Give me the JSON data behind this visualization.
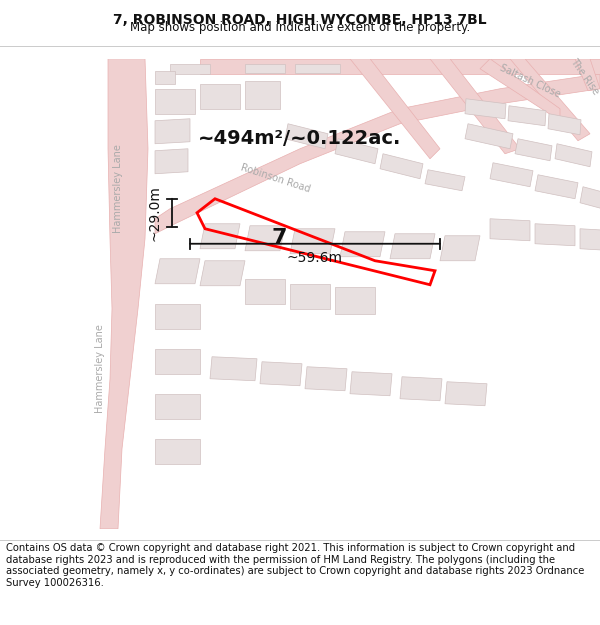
{
  "title": "7, ROBINSON ROAD, HIGH WYCOMBE, HP13 7BL",
  "subtitle": "Map shows position and indicative extent of the property.",
  "area_text": "~494m²/~0.122ac.",
  "width_text": "~59.6m",
  "height_text": "~29.0m",
  "number_text": "7",
  "footer_text": "Contains OS data © Crown copyright and database right 2021. This information is subject to Crown copyright and database rights 2023 and is reproduced with the permission of HM Land Registry. The polygons (including the associated geometry, namely x, y co-ordinates) are subject to Crown copyright and database rights 2023 Ordnance Survey 100026316.",
  "bg_color": "#f5f0f0",
  "map_bg_color": "#f5f0f0",
  "road_color": "#f0d0d0",
  "road_line_color": "#e8b0b0",
  "building_color": "#e8e0e0",
  "building_edge_color": "#d0c0c0",
  "plot_color": "#ff0000",
  "plot_fill": "none",
  "text_color": "#111111",
  "dim_color": "#111111",
  "road_label_color": "#aaaaaa",
  "title_fontsize": 10,
  "subtitle_fontsize": 8.5,
  "area_fontsize": 14,
  "number_fontsize": 16,
  "dim_fontsize": 10,
  "footer_fontsize": 7.2,
  "road_label_fontsize": 7
}
